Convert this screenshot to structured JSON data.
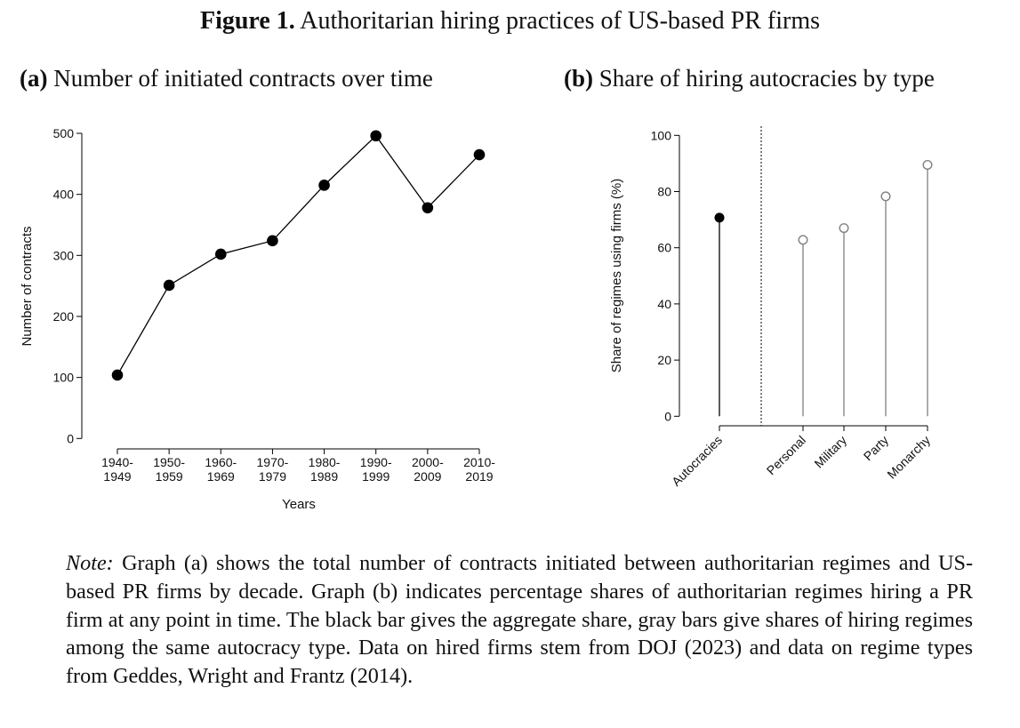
{
  "figure": {
    "label": "Figure 1.",
    "title": "Authoritarian hiring practices of US-based PR firms"
  },
  "panels": {
    "a": {
      "label": "(a)",
      "title": "Number of initiated contracts over time"
    },
    "b": {
      "label": "(b)",
      "title": "Share of hiring autocracies by type"
    }
  },
  "note": {
    "label": "Note:",
    "text": "Graph (a) shows the total number of contracts initiated between authoritarian regimes and US-based PR firms by decade. Graph (b) indicates percentage shares of authoritarian regimes hiring a PR firm at any point in time. The black bar gives the aggregate share, gray bars give shares of hiring regimes among the same autocracy type. Data on hired firms stem from DOJ (2023) and data on regime types from Geddes, Wright and Frantz (2014)."
  },
  "chart_data": [
    {
      "type": "line",
      "title": "Number of initiated contracts over time",
      "xlabel": "Years",
      "ylabel": "Number of contracts",
      "categories": [
        [
          "1940-",
          "1949"
        ],
        [
          "1950-",
          "1959"
        ],
        [
          "1960-",
          "1969"
        ],
        [
          "1970-",
          "1979"
        ],
        [
          "1980-",
          "1989"
        ],
        [
          "1990-",
          "1999"
        ],
        [
          "2000-",
          "2009"
        ],
        [
          "2010-",
          "2019"
        ]
      ],
      "values": [
        104,
        251,
        302,
        324,
        415,
        496,
        378,
        465
      ],
      "ylim": [
        0,
        500
      ],
      "yticks": [
        0,
        100,
        200,
        300,
        400,
        500
      ],
      "marker": "filled-circle",
      "color": "#000000",
      "grid": false
    },
    {
      "type": "lollipop",
      "title": "Share of hiring autocracies by type",
      "xlabel": "",
      "ylabel": "Share of regimes using firms (%)",
      "categories": [
        "Autocracies",
        "Personal",
        "Military",
        "Party",
        "Monarchy"
      ],
      "values": [
        70.7,
        62.8,
        67.0,
        78.3,
        89.5
      ],
      "styles": [
        "aggregate",
        "type",
        "type",
        "type",
        "type"
      ],
      "ylim": [
        0,
        100
      ],
      "yticks": [
        0,
        20,
        40,
        60,
        80,
        100
      ],
      "colors": {
        "aggregate": "#000000",
        "type": "#808080"
      },
      "separator": "dotted line between aggregate and regime types",
      "grid": false
    }
  ]
}
